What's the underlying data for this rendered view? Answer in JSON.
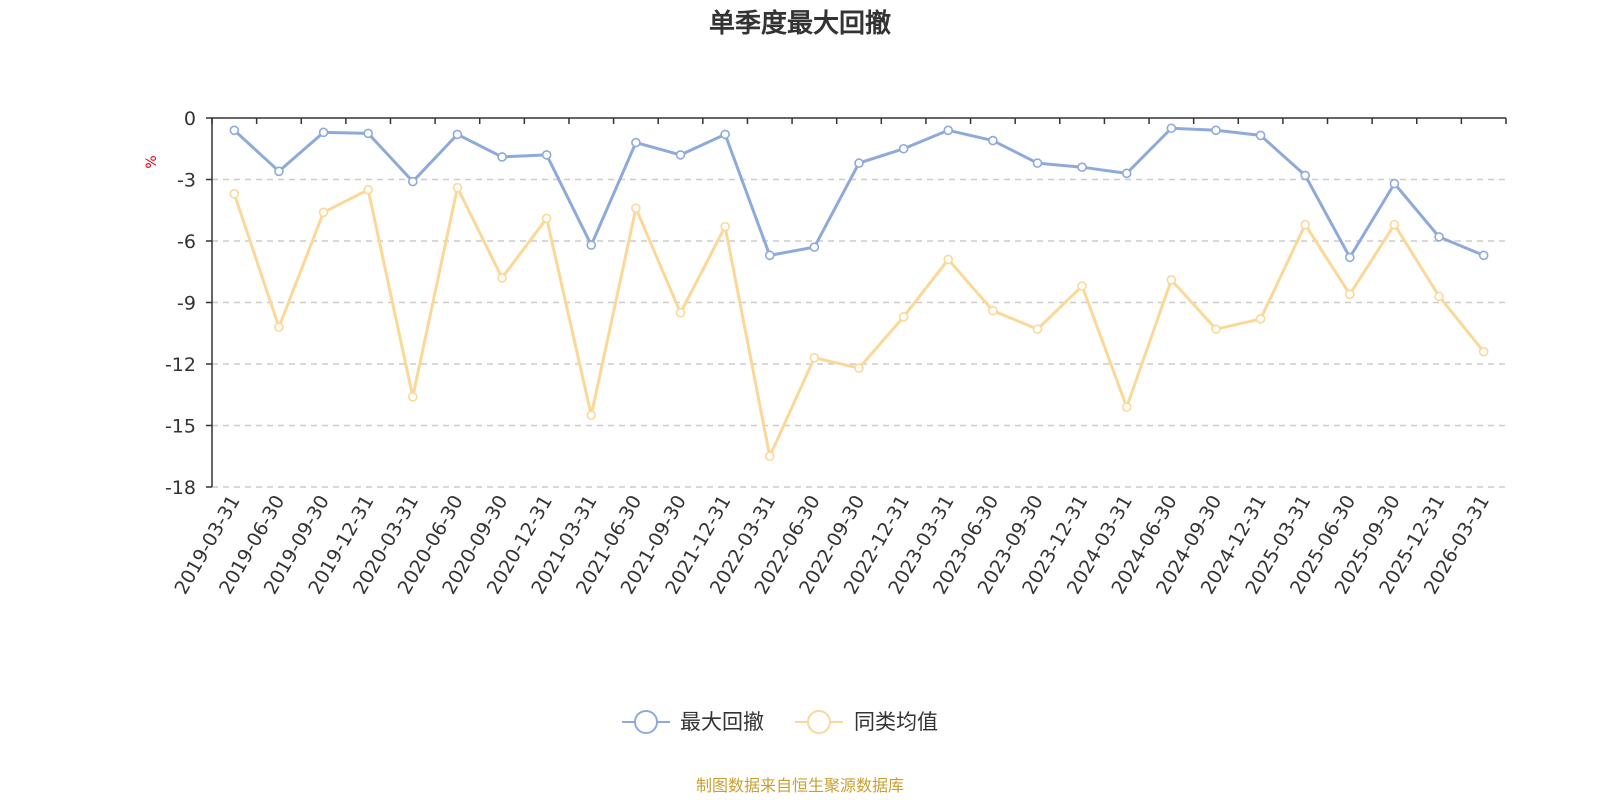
{
  "chart_data": {
    "type": "line",
    "title": "单季度最大回撤",
    "ylabel": "%",
    "xlabel": "",
    "ylim": [
      -18,
      0
    ],
    "yticks": [
      0,
      -3,
      -6,
      -9,
      -12,
      -15,
      -18
    ],
    "grid": true,
    "legend_position": "bottom",
    "categories": [
      "2019-03-31",
      "2019-06-30",
      "2019-09-30",
      "2019-12-31",
      "2020-03-31",
      "2020-06-30",
      "2020-09-30",
      "2020-12-31",
      "2021-03-31",
      "2021-06-30",
      "2021-09-30",
      "2021-12-31",
      "2022-03-31",
      "2022-06-30",
      "2022-09-30",
      "2022-12-31",
      "2023-03-31",
      "2023-06-30",
      "2023-09-30",
      "2023-12-31",
      "2024-03-31",
      "2024-06-30",
      "2024-09-30",
      "2024-12-31",
      "2025-03-31",
      "2025-06-30",
      "2025-09-30",
      "2025-12-31",
      "2026-03-31"
    ],
    "series": [
      {
        "name": "最大回撤",
        "color": "#8eaadb",
        "values": [
          -0.6,
          -2.6,
          -0.7,
          -0.75,
          -3.1,
          -0.8,
          -1.9,
          -1.8,
          -6.2,
          -1.2,
          -1.8,
          -0.8,
          -6.7,
          -6.3,
          -2.2,
          -1.5,
          -0.6,
          -1.1,
          -2.2,
          -2.4,
          -2.7,
          -0.5,
          -0.6,
          -0.85,
          -2.8,
          -6.8,
          -3.2,
          -5.8,
          -6.7
        ]
      },
      {
        "name": "同类均值",
        "color": "#fcd898",
        "values": [
          -3.7,
          -10.2,
          -4.6,
          -3.5,
          -13.6,
          -3.4,
          -7.8,
          -4.9,
          -14.5,
          -4.4,
          -9.5,
          -5.3,
          -16.5,
          -11.7,
          -12.2,
          -9.7,
          -6.9,
          -9.4,
          -10.3,
          -8.2,
          -14.1,
          -7.9,
          -10.3,
          -9.8,
          -5.2,
          -8.6,
          -5.2,
          -8.7,
          -11.4
        ]
      }
    ]
  },
  "footer": {
    "source_text": "制图数据来自恒生聚源数据库"
  }
}
